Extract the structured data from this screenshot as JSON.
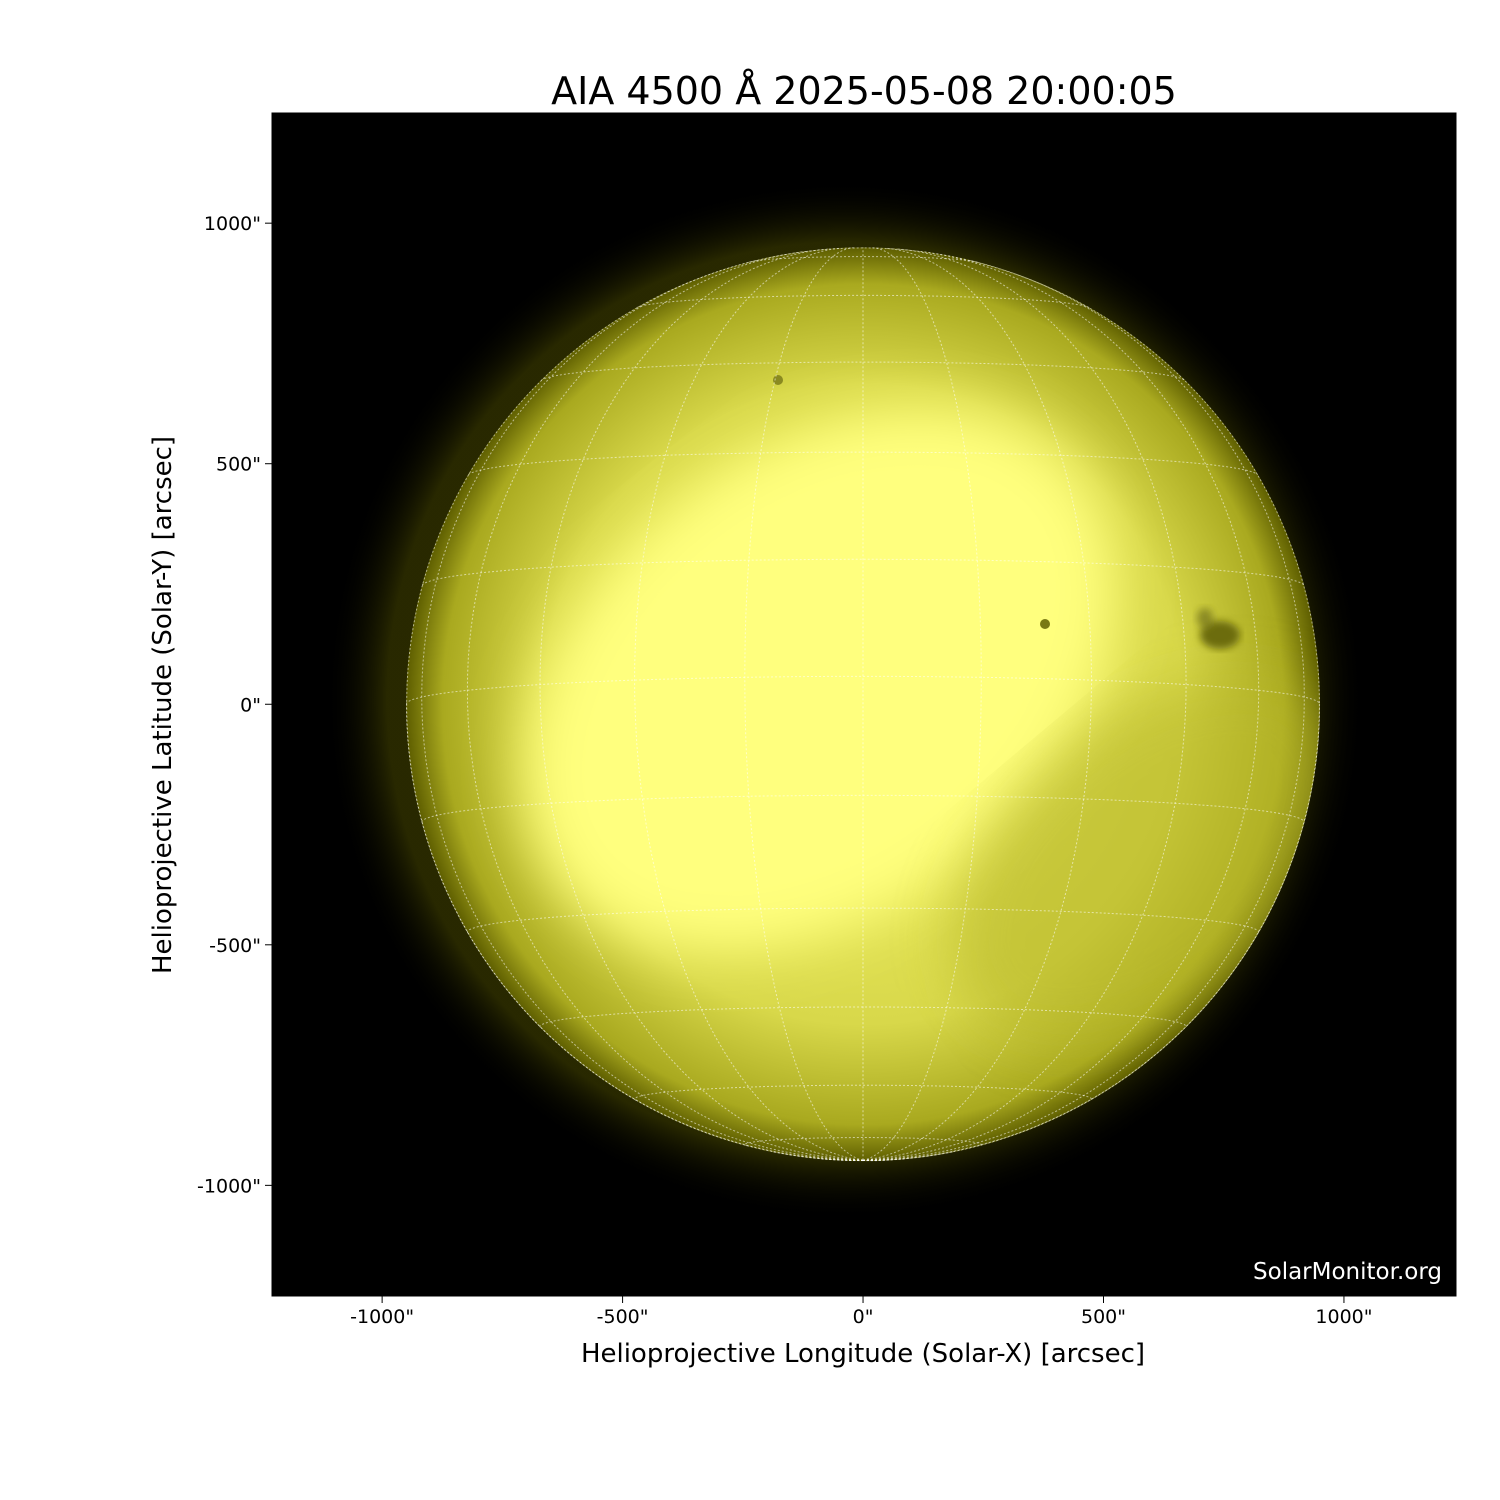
{
  "chart_data": {
    "type": "image",
    "title": "AIA 4500 Å 2025-05-08 20:00:05",
    "xlabel": "Helioprojective Longitude (Solar-X) [arcsec]",
    "ylabel": "Helioprojective Latitude (Solar-Y) [arcsec]",
    "xlim": [
      -1229,
      1233
    ],
    "ylim": [
      -1230,
      1229
    ],
    "xticks": [
      {
        "value": -1000,
        "label": "-1000\""
      },
      {
        "value": -500,
        "label": "-500\""
      },
      {
        "value": 0,
        "label": "0\""
      },
      {
        "value": 500,
        "label": "500\""
      },
      {
        "value": 1000,
        "label": "1000\""
      }
    ],
    "yticks": [
      {
        "value": 1000,
        "label": "1000\""
      },
      {
        "value": 500,
        "label": "500\""
      },
      {
        "value": 0,
        "label": "0\""
      },
      {
        "value": -500,
        "label": "-500\""
      },
      {
        "value": -1000,
        "label": "-1000\""
      }
    ],
    "solar_radius_arcsec": 950,
    "grid": true,
    "grid_spacing_deg": 15,
    "colormap": "yellow (sdoaia4500)",
    "colors": {
      "background": "#000000",
      "disk_bright": "#ffff80",
      "disk_limb": "#6b6b00",
      "grid": "#ffffff"
    },
    "watermark": "SolarMonitor.org"
  }
}
